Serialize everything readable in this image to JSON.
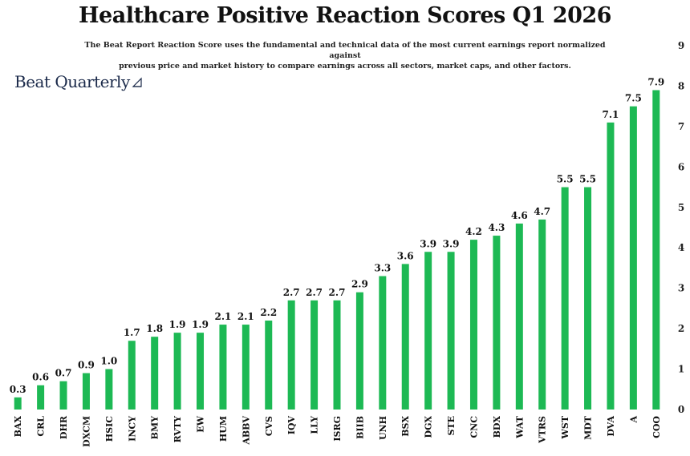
{
  "header": {
    "title": "Healthcare Positive Reaction Scores Q1 2026",
    "subtitle_line1": "The Beat Report Reaction Score uses the fundamental and technical data of the most current earnings report normalized against",
    "subtitle_line2": "previous price and market history to compare earnings across all sectors, market caps, and other factors.",
    "brand": "Beat Quarterly"
  },
  "colors": {
    "bar": "#1db954",
    "text": "#111111",
    "brand": "#1b2a4a"
  },
  "chart_data": {
    "type": "bar",
    "title": "Healthcare Positive Reaction Scores Q1 2026",
    "xlabel": "",
    "ylabel": "",
    "ylim": [
      0,
      9
    ],
    "yticks": [
      0,
      1,
      2,
      3,
      4,
      5,
      6,
      7,
      8,
      9
    ],
    "y_axis_side": "right",
    "grid": false,
    "categories": [
      "BAX",
      "CRL",
      "DHR",
      "DXCM",
      "HSIC",
      "INCY",
      "BMY",
      "RVTY",
      "EW",
      "HUM",
      "ABBV",
      "CVS",
      "IQV",
      "LLY",
      "ISRG",
      "BIIB",
      "UNH",
      "BSX",
      "DGX",
      "STE",
      "CNC",
      "BDX",
      "WAT",
      "VTRS",
      "WST",
      "MDT",
      "DVA",
      "A",
      "COO"
    ],
    "values": [
      0.3,
      0.6,
      0.7,
      0.9,
      1.0,
      1.7,
      1.8,
      1.9,
      1.9,
      2.1,
      2.1,
      2.2,
      2.7,
      2.7,
      2.7,
      2.9,
      3.3,
      3.6,
      3.9,
      3.9,
      4.2,
      4.3,
      4.6,
      4.7,
      5.5,
      5.5,
      7.1,
      7.5,
      7.9
    ],
    "value_labels": [
      "0.3",
      "0.6",
      "0.7",
      "0.9",
      "1.0",
      "1.7",
      "1.8",
      "1.9",
      "1.9",
      "2.1",
      "2.1",
      "2.2",
      "2.7",
      "2.7",
      "2.7",
      "2.9",
      "3.3",
      "3.6",
      "3.9",
      "3.9",
      "4.2",
      "4.3",
      "4.6",
      "4.7",
      "5.5",
      "5.5",
      "7.1",
      "7.5",
      "7.9"
    ]
  }
}
